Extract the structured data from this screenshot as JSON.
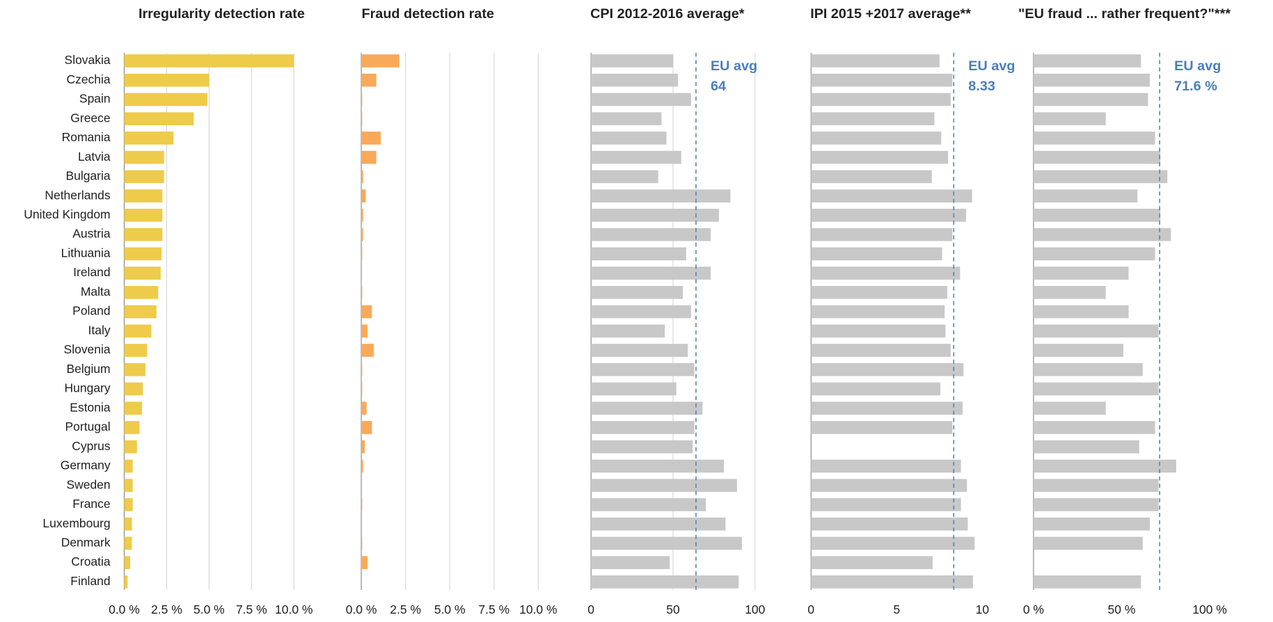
{
  "chart_data": [
    {
      "type": "bar",
      "orientation": "horizontal",
      "title": "Irregularity detection rate",
      "categories": [
        "Slovakia",
        "Czechia",
        "Spain",
        "Greece",
        "Romania",
        "Latvia",
        "Bulgaria",
        "Netherlands",
        "United Kingdom",
        "Austria",
        "Lithuania",
        "Ireland",
        "Malta",
        "Poland",
        "Italy",
        "Slovenia",
        "Belgium",
        "Hungary",
        "Estonia",
        "Portugal",
        "Cyprus",
        "Germany",
        "Sweden",
        "France",
        "Luxembourg",
        "Denmark",
        "Croatia",
        "Finland"
      ],
      "values": [
        10.0,
        5.0,
        4.9,
        4.1,
        2.9,
        2.35,
        2.35,
        2.25,
        2.25,
        2.25,
        2.2,
        2.15,
        2.0,
        1.9,
        1.6,
        1.35,
        1.25,
        1.1,
        1.05,
        0.9,
        0.75,
        0.5,
        0.5,
        0.5,
        0.45,
        0.45,
        0.35,
        0.2
      ],
      "color": "#eecb4a",
      "xlim": [
        0,
        10
      ],
      "xticks": [
        {
          "value": 0,
          "label": "0.0 %"
        },
        {
          "value": 2.5,
          "label": "2.5 %"
        },
        {
          "value": 5,
          "label": "5.0 %"
        },
        {
          "value": 7.5,
          "label": "7.5 %"
        },
        {
          "value": 10,
          "label": "10.0 %"
        }
      ],
      "grid": true
    },
    {
      "type": "bar",
      "orientation": "horizontal",
      "title": "Fraud detection rate",
      "values": [
        2.15,
        0.85,
        0.05,
        0.05,
        1.1,
        0.85,
        0.1,
        0.25,
        0.1,
        0.1,
        0.05,
        0,
        0.05,
        0.6,
        0.35,
        0.7,
        0.05,
        0.05,
        0.3,
        0.6,
        0.2,
        0.1,
        0,
        0.05,
        0,
        0.05,
        0.35,
        0
      ],
      "color": "#f9a95a",
      "xlim": [
        0,
        10
      ],
      "xticks": [
        {
          "value": 0,
          "label": "0.0 %"
        },
        {
          "value": 2.5,
          "label": "2.5 %"
        },
        {
          "value": 5,
          "label": "5.0 %"
        },
        {
          "value": 7.5,
          "label": "7.5 %"
        },
        {
          "value": 10,
          "label": "10.0 %"
        }
      ],
      "grid": true
    },
    {
      "type": "bar",
      "orientation": "horizontal",
      "title": "CPI 2012-2016  average*",
      "values": [
        50,
        53,
        61,
        43,
        46,
        55,
        41,
        85,
        78,
        73,
        58,
        73,
        56,
        61,
        45,
        59,
        63,
        52,
        68,
        63,
        62,
        81,
        89,
        70,
        82,
        92,
        48,
        90
      ],
      "color": "#c8c8c8",
      "xlim": [
        0,
        100
      ],
      "xticks": [
        0,
        50,
        100
      ],
      "grid": true,
      "reference": {
        "label": "EU avg",
        "value": 64
      }
    },
    {
      "type": "bar",
      "orientation": "horizontal",
      "title": "IPI 2015 +2017 average**",
      "values": [
        7.5,
        8.25,
        8.15,
        7.2,
        7.6,
        8.0,
        7.05,
        9.4,
        9.05,
        8.25,
        7.65,
        8.7,
        7.95,
        7.8,
        7.85,
        8.15,
        8.9,
        7.55,
        8.85,
        8.25,
        null,
        8.75,
        9.1,
        8.75,
        9.15,
        9.55,
        7.1,
        9.45
      ],
      "color": "#c8c8c8",
      "xlim": [
        0,
        10
      ],
      "xticks": [
        0,
        5,
        10
      ],
      "grid": false,
      "reference": {
        "label": "EU avg",
        "value": 8.33
      }
    },
    {
      "type": "bar",
      "orientation": "horizontal",
      "title": "\"EU fraud ... rather frequent?\"***",
      "values": [
        61,
        66,
        65,
        41,
        69,
        72,
        76,
        59,
        72,
        78,
        69,
        54,
        41,
        54,
        71,
        51,
        62,
        71,
        41,
        69,
        60,
        81,
        71,
        71,
        66,
        62,
        null,
        61
      ],
      "color": "#c8c8c8",
      "xlim": [
        0,
        100
      ],
      "xticks": [
        {
          "value": 0,
          "label": "0 %"
        },
        {
          "value": 50,
          "label": "50 %"
        },
        {
          "value": 100,
          "label": "100 %"
        }
      ],
      "grid": false,
      "reference": {
        "label": "EU avg",
        "value": 71.6,
        "value_label": "71.6 %"
      }
    }
  ]
}
